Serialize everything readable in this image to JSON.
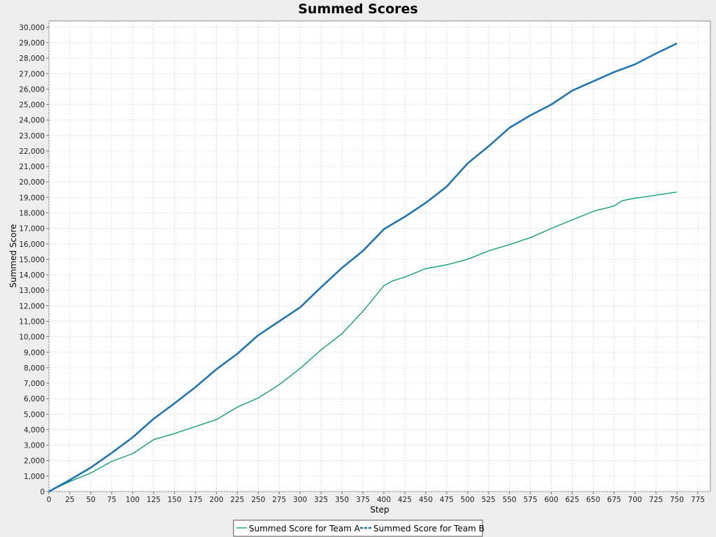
{
  "chart_data": {
    "type": "line",
    "title": "Summed Scores",
    "xlabel": "Step",
    "ylabel": "Summed Score",
    "xlim": [
      0,
      790
    ],
    "ylim": [
      0,
      30400
    ],
    "x_ticks": [
      0,
      25,
      50,
      75,
      100,
      125,
      150,
      175,
      200,
      225,
      250,
      275,
      300,
      325,
      350,
      375,
      400,
      425,
      450,
      475,
      500,
      525,
      550,
      575,
      600,
      625,
      650,
      675,
      700,
      725,
      750,
      775
    ],
    "x_tick_labels": [
      "0",
      "25",
      "50",
      "75",
      "100",
      "125",
      "150",
      "175",
      "200",
      "225",
      "250",
      "275",
      "300",
      "325",
      "350",
      "375",
      "400",
      "425",
      "450",
      "475",
      "500",
      "525",
      "550",
      "575",
      "600",
      "625",
      "650",
      "675",
      "700",
      "725",
      "750",
      "775"
    ],
    "y_ticks": [
      0,
      1000,
      2000,
      3000,
      4000,
      5000,
      6000,
      7000,
      8000,
      9000,
      10000,
      11000,
      12000,
      13000,
      14000,
      15000,
      16000,
      17000,
      18000,
      19000,
      20000,
      21000,
      22000,
      23000,
      24000,
      25000,
      26000,
      27000,
      28000,
      29000,
      30000
    ],
    "y_tick_labels": [
      "0",
      "1,000",
      "2,000",
      "3,000",
      "4,000",
      "5,000",
      "6,000",
      "7,000",
      "8,000",
      "9,000",
      "10,000",
      "11,000",
      "12,000",
      "13,000",
      "14,000",
      "15,000",
      "16,000",
      "17,000",
      "18,000",
      "19,000",
      "20,000",
      "21,000",
      "22,000",
      "23,000",
      "24,000",
      "25,000",
      "26,000",
      "27,000",
      "28,000",
      "29,000",
      "30,000"
    ],
    "grid": true,
    "legend_position": "bottom",
    "series": [
      {
        "name": "Summed Score for Team A",
        "color": "#00996b",
        "x": [
          0,
          25,
          50,
          75,
          100,
          125,
          150,
          175,
          200,
          225,
          250,
          275,
          300,
          325,
          350,
          375,
          400,
          410,
          425,
          450,
          475,
          500,
          525,
          550,
          575,
          600,
          625,
          650,
          675,
          685,
          700,
          725,
          750
        ],
        "y": [
          0,
          650,
          1200,
          1950,
          2450,
          3350,
          3750,
          4200,
          4650,
          5450,
          6050,
          6900,
          7950,
          9150,
          10200,
          11650,
          13300,
          13600,
          13850,
          14400,
          14650,
          15000,
          15550,
          15950,
          16400,
          17000,
          17550,
          18100,
          18450,
          18800,
          18950,
          19150,
          19350
        ]
      },
      {
        "name": "Summed Score for Team B",
        "color": "#1f74b2",
        "x": [
          0,
          25,
          50,
          75,
          100,
          125,
          150,
          175,
          200,
          225,
          250,
          275,
          300,
          325,
          350,
          375,
          400,
          425,
          450,
          475,
          500,
          525,
          550,
          575,
          600,
          625,
          650,
          675,
          700,
          725,
          750
        ],
        "y": [
          0,
          750,
          1550,
          2500,
          3500,
          4700,
          5700,
          6750,
          7900,
          8900,
          10100,
          11000,
          11900,
          13200,
          14450,
          15550,
          16950,
          17750,
          18650,
          19700,
          21200,
          22300,
          23500,
          24300,
          25000,
          25900,
          26500,
          27100,
          27600,
          28300,
          28950
        ]
      }
    ]
  }
}
